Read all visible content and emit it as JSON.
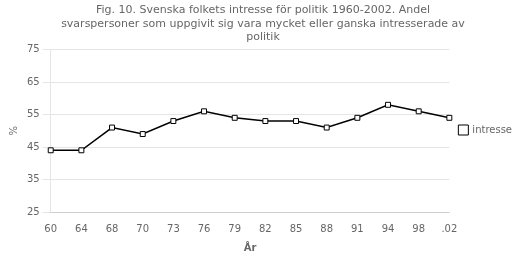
{
  "chart_data": {
    "type": "line",
    "title": [
      "Fig. 10. Svenska folkets intresse för politik 1960-2002. Andel",
      "svarspersoner som uppgivit sig vara mycket eller ganska intresserade av",
      "politik"
    ],
    "categories": [
      "60",
      "64",
      "68",
      "70",
      "73",
      "76",
      "79",
      "82",
      "85",
      "88",
      "91",
      "94",
      "98",
      ".02"
    ],
    "series": [
      {
        "name": "intresse",
        "color": "#000000",
        "marker": "square",
        "values": [
          44,
          44,
          51,
          49,
          53,
          56,
          54,
          53,
          53,
          51,
          54,
          58,
          56,
          54
        ]
      }
    ],
    "xlabel": "År",
    "ylabel": "%",
    "ylim": [
      25,
      75
    ],
    "yticks": [
      25,
      35,
      45,
      55,
      65,
      75
    ],
    "grid": "y",
    "legend": "right"
  }
}
